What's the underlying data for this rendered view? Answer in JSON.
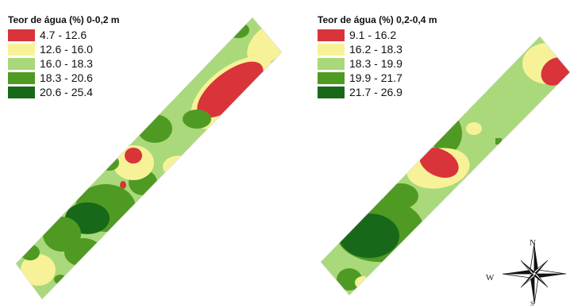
{
  "maps": [
    {
      "title": "Teor de água (%) 0-0,2 m",
      "classes": [
        {
          "range": "4.7 - 12.6",
          "color": "#d8343a"
        },
        {
          "range": "12.6 - 16.0",
          "color": "#f7f297"
        },
        {
          "range": "16.0 - 18.3",
          "color": "#a9d97a"
        },
        {
          "range": "18.3 - 20.6",
          "color": "#4f9a23"
        },
        {
          "range": "20.6 - 25.4",
          "color": "#18681a"
        }
      ]
    },
    {
      "title": "Teor de água (%) 0,2-0,4 m",
      "classes": [
        {
          "range": "9.1 - 16.2",
          "color": "#d8343a"
        },
        {
          "range": "16.2 - 18.3",
          "color": "#f7f297"
        },
        {
          "range": "18.3 - 19.9",
          "color": "#a9d97a"
        },
        {
          "range": "19.9 - 21.7",
          "color": "#4f9a23"
        },
        {
          "range": "21.7 - 26.9",
          "color": "#18681a"
        }
      ]
    }
  ],
  "compass": {
    "north": "N",
    "west": "W",
    "south": "S"
  }
}
